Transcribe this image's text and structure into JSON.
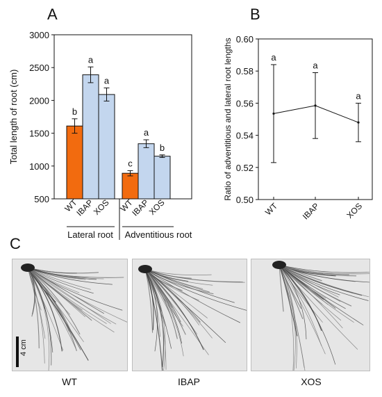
{
  "panels": {
    "a": {
      "letter": "A"
    },
    "b": {
      "letter": "B"
    },
    "c": {
      "letter": "C"
    }
  },
  "chart_data": [
    {
      "type": "bar",
      "panel": "A",
      "ylabel": "Total length of root (cm)",
      "ylim": [
        500,
        3000
      ],
      "yticks": [
        500,
        1000,
        1500,
        2000,
        2500,
        3000
      ],
      "groups": [
        {
          "name": "Lateral root",
          "categories": [
            "WT",
            "IBAP",
            "XOS"
          ],
          "values": [
            1610,
            2390,
            2090
          ],
          "errors": [
            110,
            120,
            100
          ],
          "letters": [
            "b",
            "a",
            "a"
          ]
        },
        {
          "name": "Adventitious root",
          "categories": [
            "WT",
            "IBAP",
            "XOS"
          ],
          "values": [
            890,
            1340,
            1150
          ],
          "errors": [
            40,
            60,
            20
          ],
          "letters": [
            "c",
            "a",
            "b"
          ]
        }
      ],
      "colors": [
        "#f26b0f",
        "#c3d6ee",
        "#c3d6ee"
      ]
    },
    {
      "type": "line",
      "panel": "B",
      "ylabel": "Ratio of adventitious and lateral root lengths",
      "ylim": [
        0.5,
        0.6
      ],
      "yticks": [
        "0.50",
        "0.52",
        "0.54",
        "0.56",
        "0.58",
        "0.60"
      ],
      "categories": [
        "WT",
        "IBAP",
        "XOS"
      ],
      "values": [
        0.5535,
        0.5585,
        0.548
      ],
      "errors": [
        0.0305,
        0.0205,
        0.012
      ],
      "letters": [
        "a",
        "a",
        "a"
      ]
    }
  ],
  "photos": {
    "labels": [
      "WT",
      "IBAP",
      "XOS"
    ],
    "scale_label": "4 cm"
  }
}
